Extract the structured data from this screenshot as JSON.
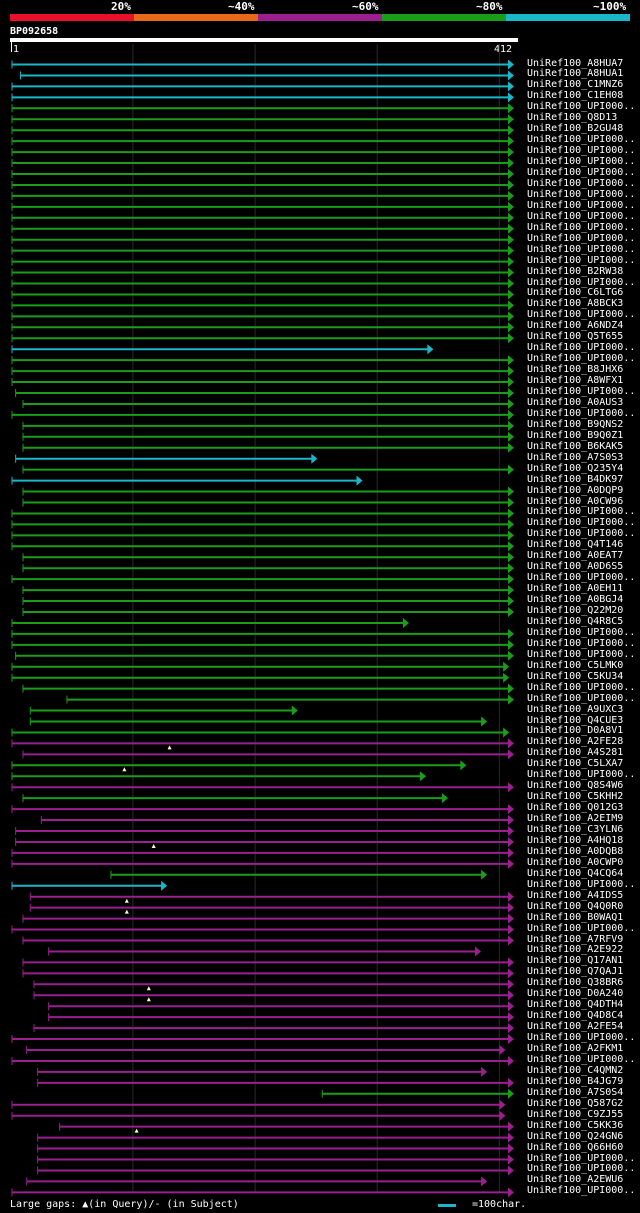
{
  "legend": {
    "labels": [
      "20%",
      "~40%",
      "~60%",
      "~80%",
      "~100%"
    ],
    "colors": [
      "#e8102a",
      "#e66a1a",
      "#9b1f8e",
      "#1a9e1a",
      "#19b7c9"
    ]
  },
  "query": {
    "name": "BP092658",
    "start": "1",
    "end": "412",
    "length": 412
  },
  "hits": [
    {
      "label": "UniRef100_A8HUA7",
      "s": 1,
      "e": 412,
      "c": "cyan"
    },
    {
      "label": "UniRef100_A8HUA1",
      "s": 8,
      "e": 412,
      "c": "cyan"
    },
    {
      "label": "UniRef100_C1MNZ6",
      "s": 1,
      "e": 412,
      "c": "cyan"
    },
    {
      "label": "UniRef100_C1EH08",
      "s": 1,
      "e": 412,
      "c": "cyan"
    },
    {
      "label": "UniRef100_UPI000..",
      "s": 1,
      "e": 412,
      "c": "green"
    },
    {
      "label": "UniRef100_Q8D13",
      "s": 1,
      "e": 412,
      "c": "green"
    },
    {
      "label": "UniRef100_B2GU48",
      "s": 1,
      "e": 412,
      "c": "green"
    },
    {
      "label": "UniRef100_UPI000..",
      "s": 1,
      "e": 412,
      "c": "green"
    },
    {
      "label": "UniRef100_UPI000..",
      "s": 1,
      "e": 412,
      "c": "green"
    },
    {
      "label": "UniRef100_UPI000..",
      "s": 1,
      "e": 412,
      "c": "green"
    },
    {
      "label": "UniRef100_UPI000..",
      "s": 1,
      "e": 412,
      "c": "green"
    },
    {
      "label": "UniRef100_UPI000..",
      "s": 1,
      "e": 412,
      "c": "green"
    },
    {
      "label": "UniRef100_UPI000..",
      "s": 1,
      "e": 412,
      "c": "green"
    },
    {
      "label": "UniRef100_UPI000..",
      "s": 1,
      "e": 412,
      "c": "green"
    },
    {
      "label": "UniRef100_UPI000..",
      "s": 1,
      "e": 412,
      "c": "green"
    },
    {
      "label": "UniRef100_UPI000..",
      "s": 1,
      "e": 412,
      "c": "green"
    },
    {
      "label": "UniRef100_UPI000..",
      "s": 1,
      "e": 412,
      "c": "green"
    },
    {
      "label": "UniRef100_UPI000..",
      "s": 1,
      "e": 412,
      "c": "green"
    },
    {
      "label": "UniRef100_UPI000..",
      "s": 1,
      "e": 412,
      "c": "green"
    },
    {
      "label": "UniRef100_B2RW38",
      "s": 1,
      "e": 412,
      "c": "green"
    },
    {
      "label": "UniRef100_UPI000..",
      "s": 1,
      "e": 412,
      "c": "green"
    },
    {
      "label": "UniRef100_C6LTG6",
      "s": 1,
      "e": 412,
      "c": "green"
    },
    {
      "label": "UniRef100_A8BCK3",
      "s": 1,
      "e": 412,
      "c": "green"
    },
    {
      "label": "UniRef100_UPI000..",
      "s": 1,
      "e": 412,
      "c": "green"
    },
    {
      "label": "UniRef100_A6NDZ4",
      "s": 1,
      "e": 412,
      "c": "green"
    },
    {
      "label": "UniRef100_Q5T655",
      "s": 1,
      "e": 412,
      "c": "green"
    },
    {
      "label": "UniRef100_UPI000..",
      "s": 1,
      "e": 346,
      "c": "cyan"
    },
    {
      "label": "UniRef100_UPI000..",
      "s": 1,
      "e": 412,
      "c": "green"
    },
    {
      "label": "UniRef100_B8JHX6",
      "s": 1,
      "e": 412,
      "c": "green"
    },
    {
      "label": "UniRef100_A8WFX1",
      "s": 1,
      "e": 412,
      "c": "green"
    },
    {
      "label": "UniRef100_UPI000..",
      "s": 4,
      "e": 412,
      "c": "green"
    },
    {
      "label": "UniRef100_A0AUS3",
      "s": 10,
      "e": 412,
      "c": "green"
    },
    {
      "label": "UniRef100_UPI000..",
      "s": 1,
      "e": 412,
      "c": "green"
    },
    {
      "label": "UniRef100_B9QNS2",
      "s": 10,
      "e": 412,
      "c": "green"
    },
    {
      "label": "UniRef100_B9Q0Z1",
      "s": 10,
      "e": 412,
      "c": "green"
    },
    {
      "label": "UniRef100_B6KAK5",
      "s": 10,
      "e": 412,
      "c": "green"
    },
    {
      "label": "UniRef100_A7S0S3",
      "s": 4,
      "e": 251,
      "c": "cyan"
    },
    {
      "label": "UniRef100_Q235Y4",
      "s": 10,
      "e": 412,
      "c": "green"
    },
    {
      "label": "UniRef100_B4DK97",
      "s": 1,
      "e": 288,
      "c": "cyan"
    },
    {
      "label": "UniRef100_A0DQP9",
      "s": 10,
      "e": 412,
      "c": "green"
    },
    {
      "label": "UniRef100_A0CW96",
      "s": 10,
      "e": 412,
      "c": "green"
    },
    {
      "label": "UniRef100_UPI000..",
      "s": 1,
      "e": 412,
      "c": "green"
    },
    {
      "label": "UniRef100_UPI000..",
      "s": 1,
      "e": 412,
      "c": "green"
    },
    {
      "label": "UniRef100_UPI000..",
      "s": 1,
      "e": 412,
      "c": "green"
    },
    {
      "label": "UniRef100_Q4T146",
      "s": 1,
      "e": 412,
      "c": "green"
    },
    {
      "label": "UniRef100_A0EAT7",
      "s": 10,
      "e": 412,
      "c": "green"
    },
    {
      "label": "UniRef100_A0D6S5",
      "s": 10,
      "e": 412,
      "c": "green"
    },
    {
      "label": "UniRef100_UPI000..",
      "s": 1,
      "e": 412,
      "c": "green"
    },
    {
      "label": "UniRef100_A0EH11",
      "s": 10,
      "e": 412,
      "c": "green"
    },
    {
      "label": "UniRef100_A0BGJ4",
      "s": 10,
      "e": 412,
      "c": "green"
    },
    {
      "label": "UniRef100_Q22M20",
      "s": 10,
      "e": 412,
      "c": "green"
    },
    {
      "label": "UniRef100_Q4R8C5",
      "s": 1,
      "e": 326,
      "c": "green"
    },
    {
      "label": "UniRef100_UPI000..",
      "s": 1,
      "e": 412,
      "c": "green"
    },
    {
      "label": "UniRef100_UPI000..",
      "s": 1,
      "e": 412,
      "c": "green"
    },
    {
      "label": "UniRef100_UPI000..",
      "s": 4,
      "e": 412,
      "c": "green"
    },
    {
      "label": "UniRef100_C5LMK0",
      "s": 1,
      "e": 408,
      "c": "green"
    },
    {
      "label": "UniRef100_C5KU34",
      "s": 1,
      "e": 408,
      "c": "green"
    },
    {
      "label": "UniRef100_UPI000..",
      "s": 10,
      "e": 412,
      "c": "green"
    },
    {
      "label": "UniRef100_UPI000..",
      "s": 46,
      "e": 412,
      "c": "green"
    },
    {
      "label": "UniRef100_A9UXC3",
      "s": 16,
      "e": 235,
      "c": "green"
    },
    {
      "label": "UniRef100_Q4CUE3",
      "s": 16,
      "e": 390,
      "c": "green"
    },
    {
      "label": "UniRef100_D0A8V1",
      "s": 1,
      "e": 408,
      "c": "green"
    },
    {
      "label": "UniRef100_A2FE28",
      "s": 1,
      "e": 412,
      "c": "purple",
      "mark": 130
    },
    {
      "label": "UniRef100_A4S281",
      "s": 10,
      "e": 412,
      "c": "purple"
    },
    {
      "label": "UniRef100_C5LXA7",
      "s": 1,
      "e": 373,
      "c": "green",
      "mark": 93
    },
    {
      "label": "UniRef100_UPI000..",
      "s": 1,
      "e": 340,
      "c": "green"
    },
    {
      "label": "UniRef100_Q8S4W6",
      "s": 1,
      "e": 412,
      "c": "purple"
    },
    {
      "label": "UniRef100_C5KHH2",
      "s": 10,
      "e": 358,
      "c": "green"
    },
    {
      "label": "UniRef100_Q012G3",
      "s": 1,
      "e": 412,
      "c": "purple"
    },
    {
      "label": "UniRef100_A2EIM9",
      "s": 25,
      "e": 412,
      "c": "purple"
    },
    {
      "label": "UniRef100_C3YLN6",
      "s": 4,
      "e": 412,
      "c": "purple"
    },
    {
      "label": "UniRef100_A4HQ18",
      "s": 4,
      "e": 412,
      "c": "purple",
      "mark": 117
    },
    {
      "label": "UniRef100_A0DQB8",
      "s": 1,
      "e": 412,
      "c": "purple"
    },
    {
      "label": "UniRef100_A0CWP0",
      "s": 1,
      "e": 412,
      "c": "purple"
    },
    {
      "label": "UniRef100_Q4CQ64",
      "s": 82,
      "e": 390,
      "c": "green"
    },
    {
      "label": "UniRef100_UPI000..",
      "s": 1,
      "e": 128,
      "c": "cyan"
    },
    {
      "label": "UniRef100_A4IDS5",
      "s": 16,
      "e": 412,
      "c": "purple",
      "mark": 95
    },
    {
      "label": "UniRef100_Q4Q0R0",
      "s": 16,
      "e": 412,
      "c": "purple",
      "mark": 95
    },
    {
      "label": "UniRef100_B0WAQ1",
      "s": 10,
      "e": 412,
      "c": "purple"
    },
    {
      "label": "UniRef100_UPI000..",
      "s": 1,
      "e": 412,
      "c": "purple"
    },
    {
      "label": "UniRef100_A7RFV9",
      "s": 10,
      "e": 412,
      "c": "purple"
    },
    {
      "label": "UniRef100_A2E922",
      "s": 31,
      "e": 385,
      "c": "purple"
    },
    {
      "label": "UniRef100_Q17AN1",
      "s": 10,
      "e": 412,
      "c": "purple"
    },
    {
      "label": "UniRef100_Q7QAJ1",
      "s": 10,
      "e": 412,
      "c": "purple"
    },
    {
      "label": "UniRef100_Q38BR6",
      "s": 19,
      "e": 412,
      "c": "purple",
      "mark": 113
    },
    {
      "label": "UniRef100_D0A240",
      "s": 19,
      "e": 412,
      "c": "purple",
      "mark": 113
    },
    {
      "label": "UniRef100_Q4DTH4",
      "s": 31,
      "e": 412,
      "c": "purple"
    },
    {
      "label": "UniRef100_Q4D8C4",
      "s": 31,
      "e": 412,
      "c": "purple"
    },
    {
      "label": "UniRef100_A2FE54",
      "s": 19,
      "e": 412,
      "c": "purple"
    },
    {
      "label": "UniRef100_UPI000..",
      "s": 1,
      "e": 412,
      "c": "purple"
    },
    {
      "label": "UniRef100_A2FKM1",
      "s": 13,
      "e": 405,
      "c": "purple"
    },
    {
      "label": "UniRef100_UPI000..",
      "s": 1,
      "e": 412,
      "c": "purple"
    },
    {
      "label": "UniRef100_C4QMN2",
      "s": 22,
      "e": 390,
      "c": "purple"
    },
    {
      "label": "UniRef100_B4JG79",
      "s": 22,
      "e": 412,
      "c": "purple"
    },
    {
      "label": "UniRef100_A7S0S4",
      "s": 255,
      "e": 412,
      "c": "green"
    },
    {
      "label": "UniRef100_Q587G2",
      "s": 1,
      "e": 405,
      "c": "purple"
    },
    {
      "label": "UniRef100_C9ZJ55",
      "s": 1,
      "e": 405,
      "c": "purple"
    },
    {
      "label": "UniRef100_C5KK36",
      "s": 40,
      "e": 412,
      "c": "purple",
      "mark": 103
    },
    {
      "label": "UniRef100_Q24GN6",
      "s": 22,
      "e": 412,
      "c": "purple"
    },
    {
      "label": "UniRef100_Q66H60",
      "s": 22,
      "e": 412,
      "c": "purple"
    },
    {
      "label": "UniRef100_UPI000..",
      "s": 22,
      "e": 412,
      "c": "purple"
    },
    {
      "label": "UniRef100_UPI000..",
      "s": 22,
      "e": 412,
      "c": "purple"
    },
    {
      "label": "UniRef100_A2EWU6",
      "s": 13,
      "e": 390,
      "c": "purple"
    },
    {
      "label": "UniRef100_UPI000..",
      "s": 1,
      "e": 412,
      "c": "purple"
    }
  ],
  "footer": {
    "gaps_label": "Large gaps: ▲(in Query)/- (in Subject)",
    "scale_label": "=100char."
  }
}
